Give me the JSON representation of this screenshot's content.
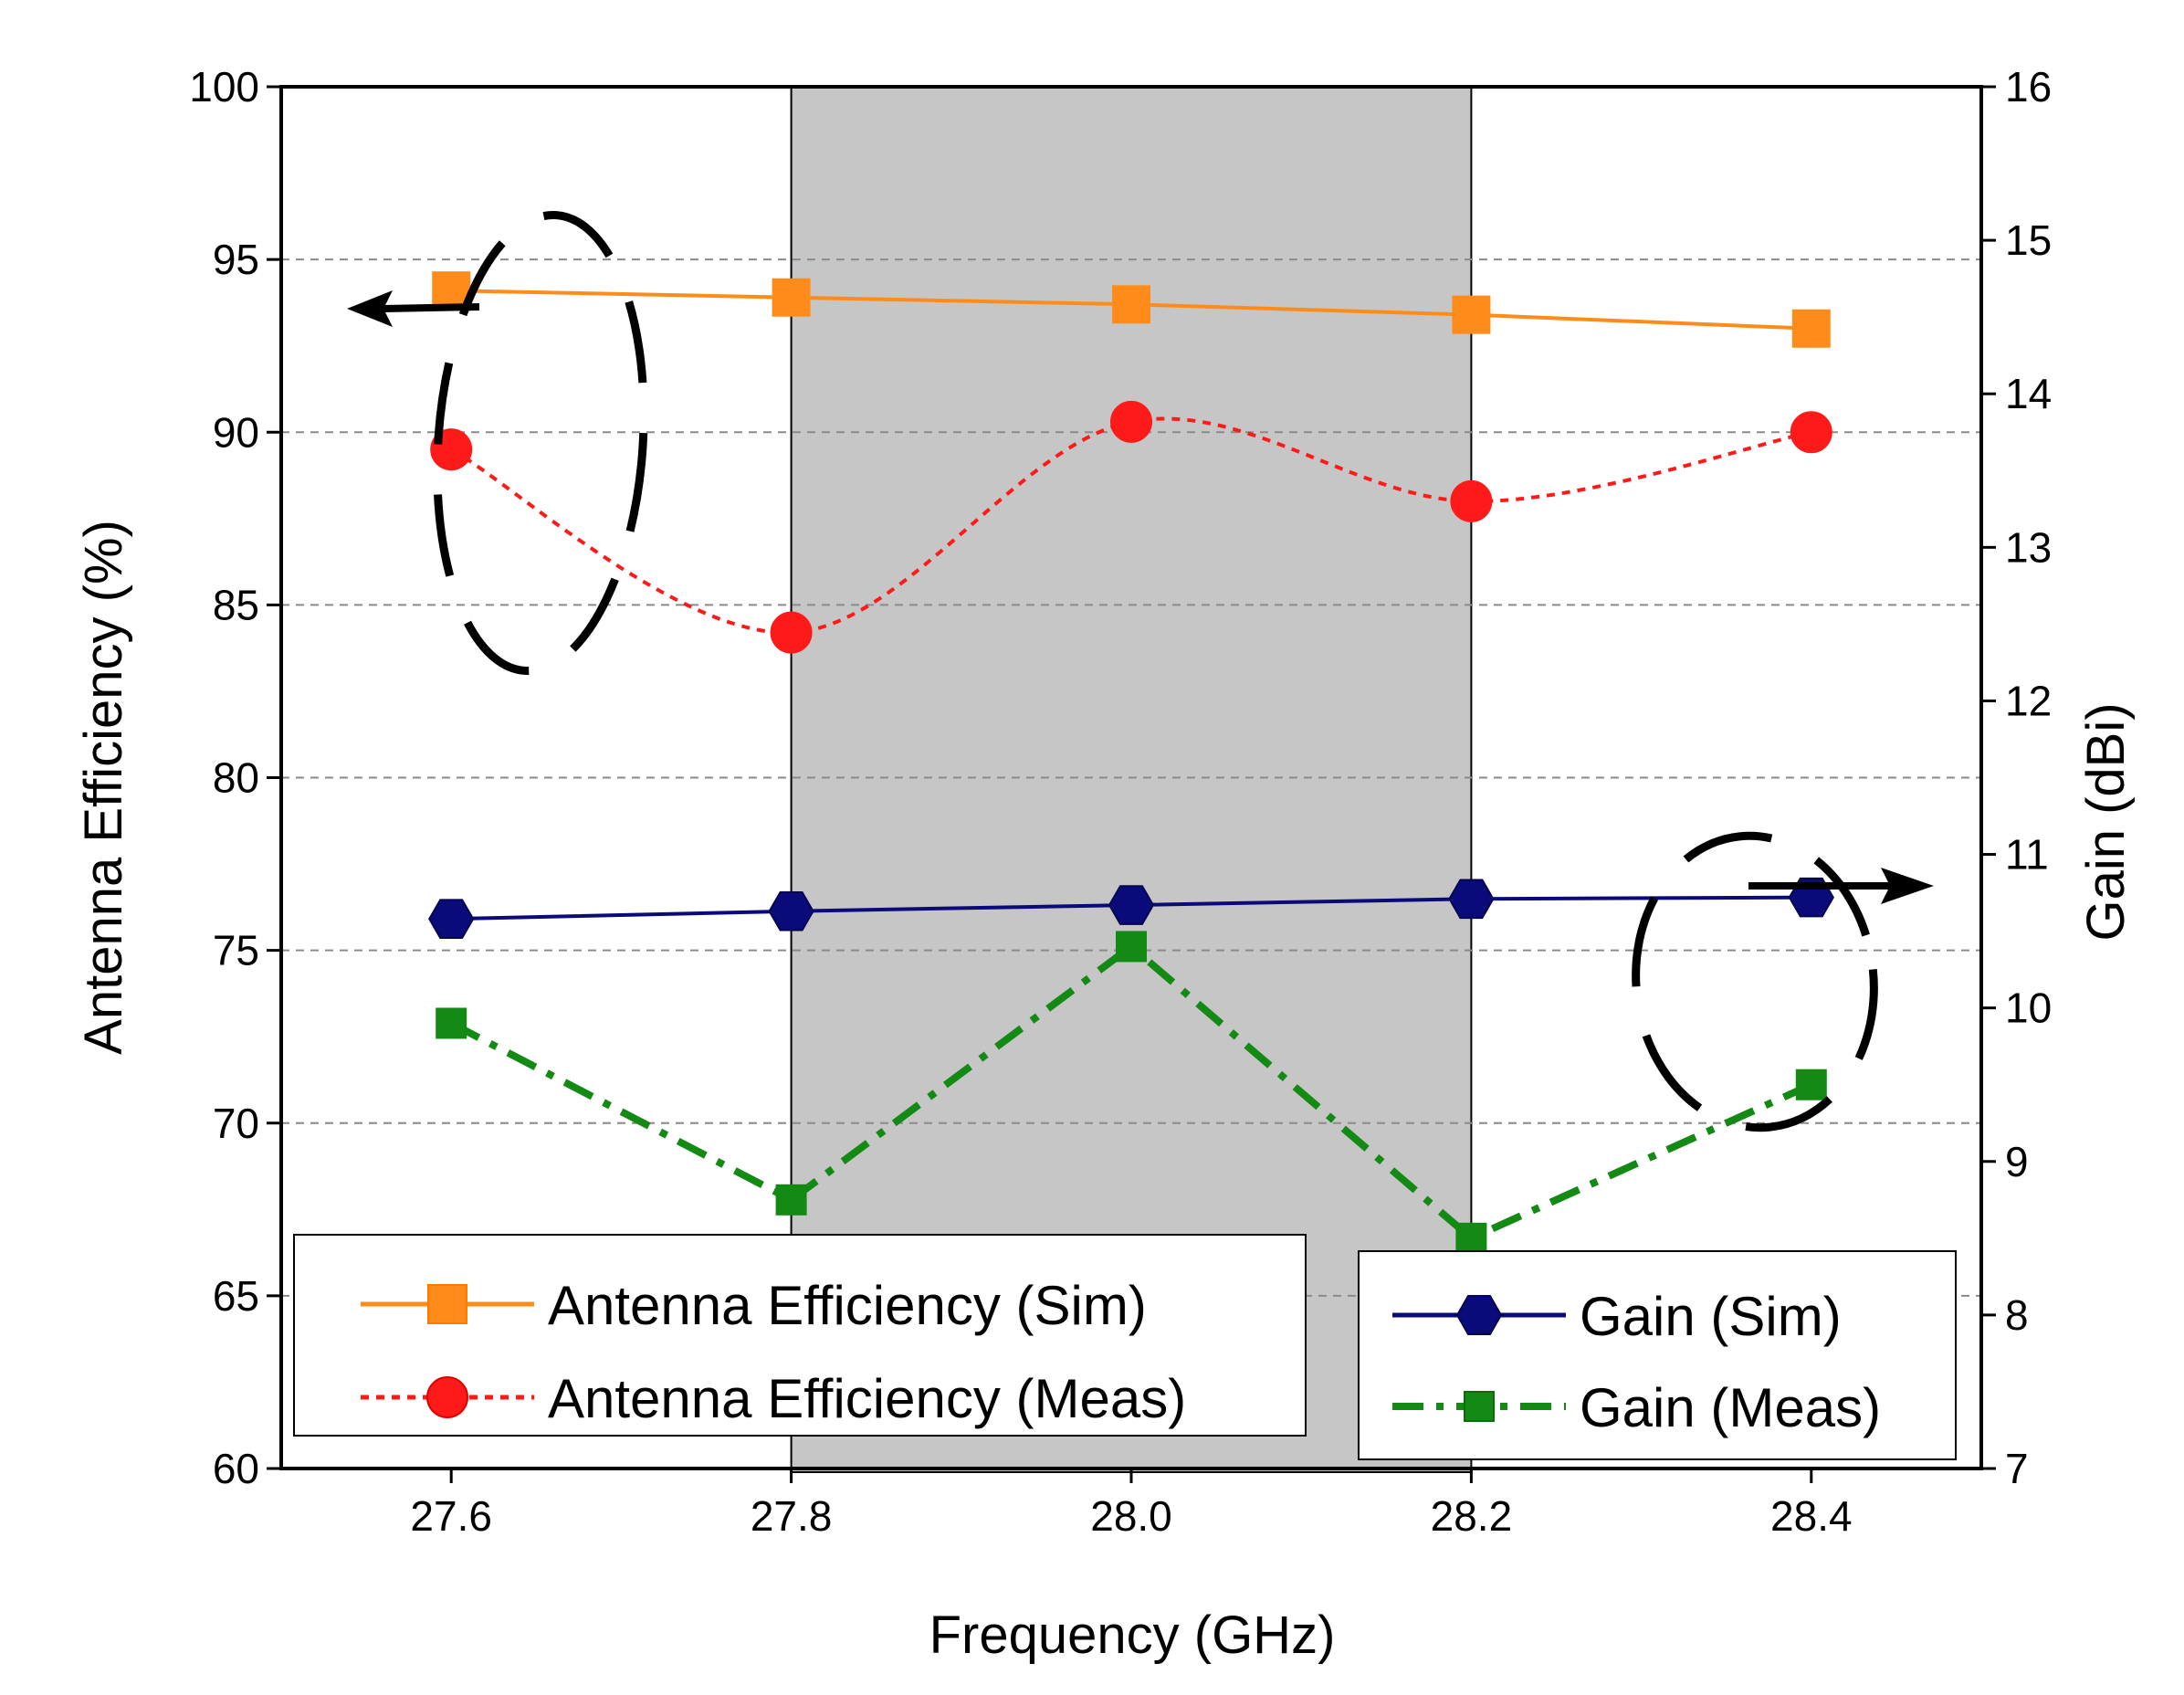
{
  "chart_data": {
    "type": "line",
    "title": "",
    "xlabel": "Frequency (GHz)",
    "ylabel_left": "Antenna Efficiency (%)",
    "ylabel_right": "Gain (dBi)",
    "xlim": [
      27.5,
      28.5
    ],
    "ylim_left": [
      60,
      100
    ],
    "ylim_right": [
      7,
      16
    ],
    "x_ticks": [
      "27.6",
      "27.8",
      "28.0",
      "28.2",
      "28.4"
    ],
    "x_tick_values": [
      27.6,
      27.8,
      28.0,
      28.2,
      28.4
    ],
    "y_left_ticks": [
      "60",
      "65",
      "70",
      "75",
      "80",
      "85",
      "90",
      "95",
      "100"
    ],
    "y_left_tick_values": [
      60,
      65,
      70,
      75,
      80,
      85,
      90,
      95,
      100
    ],
    "y_right_ticks": [
      "7",
      "8",
      "9",
      "10",
      "11",
      "12",
      "13",
      "14",
      "15",
      "16"
    ],
    "y_right_tick_values": [
      7,
      8,
      9,
      10,
      11,
      12,
      13,
      14,
      15,
      16
    ],
    "grid": "horizontal dashed",
    "shaded_band": {
      "x_range": [
        27.8,
        28.2
      ],
      "color": "#c6c6c6"
    },
    "x": [
      27.6,
      27.8,
      28.0,
      28.2,
      28.4
    ],
    "series": [
      {
        "name": "Antenna Efficiency (Sim)",
        "axis": "left",
        "values": [
          94.1,
          93.9,
          93.7,
          93.4,
          93.0
        ],
        "color": "#ff8c1a",
        "marker": "square",
        "line": "solid",
        "smooth": false
      },
      {
        "name": "Antenna Efficiency (Meas)",
        "axis": "left",
        "values": [
          89.5,
          84.2,
          90.3,
          88.0,
          90.0
        ],
        "color": "#ff1a1a",
        "marker": "circle",
        "line": "dotted",
        "smooth": true
      },
      {
        "name": "Gain (Sim)",
        "axis": "right",
        "values": [
          10.58,
          10.63,
          10.67,
          10.71,
          10.72
        ],
        "color": "#0a0a7a",
        "marker": "hexagon",
        "line": "solid",
        "smooth": false
      },
      {
        "name": "Gain (Meas)",
        "axis": "right",
        "values": [
          9.9,
          8.75,
          10.4,
          8.5,
          9.5
        ],
        "color": "#138a13",
        "marker": "square",
        "line": "dash-dot",
        "smooth": false
      }
    ],
    "legends": [
      {
        "position": "bottom-left",
        "entries": [
          "Antenna Efficiency (Sim)",
          "Antenna Efficiency (Meas)"
        ]
      },
      {
        "position": "bottom-right",
        "entries": [
          "Gain (Sim)",
          "Gain (Meas)"
        ]
      }
    ],
    "annotations": [
      {
        "type": "dashed-ellipse-with-arrow",
        "target_axis": "left",
        "arrow": "left",
        "note": "encircles efficiency curves at 27.6 GHz"
      },
      {
        "type": "dashed-ellipse-with-arrow",
        "target_axis": "right",
        "arrow": "right",
        "note": "encircles gain curves at 28.4 GHz"
      }
    ]
  }
}
